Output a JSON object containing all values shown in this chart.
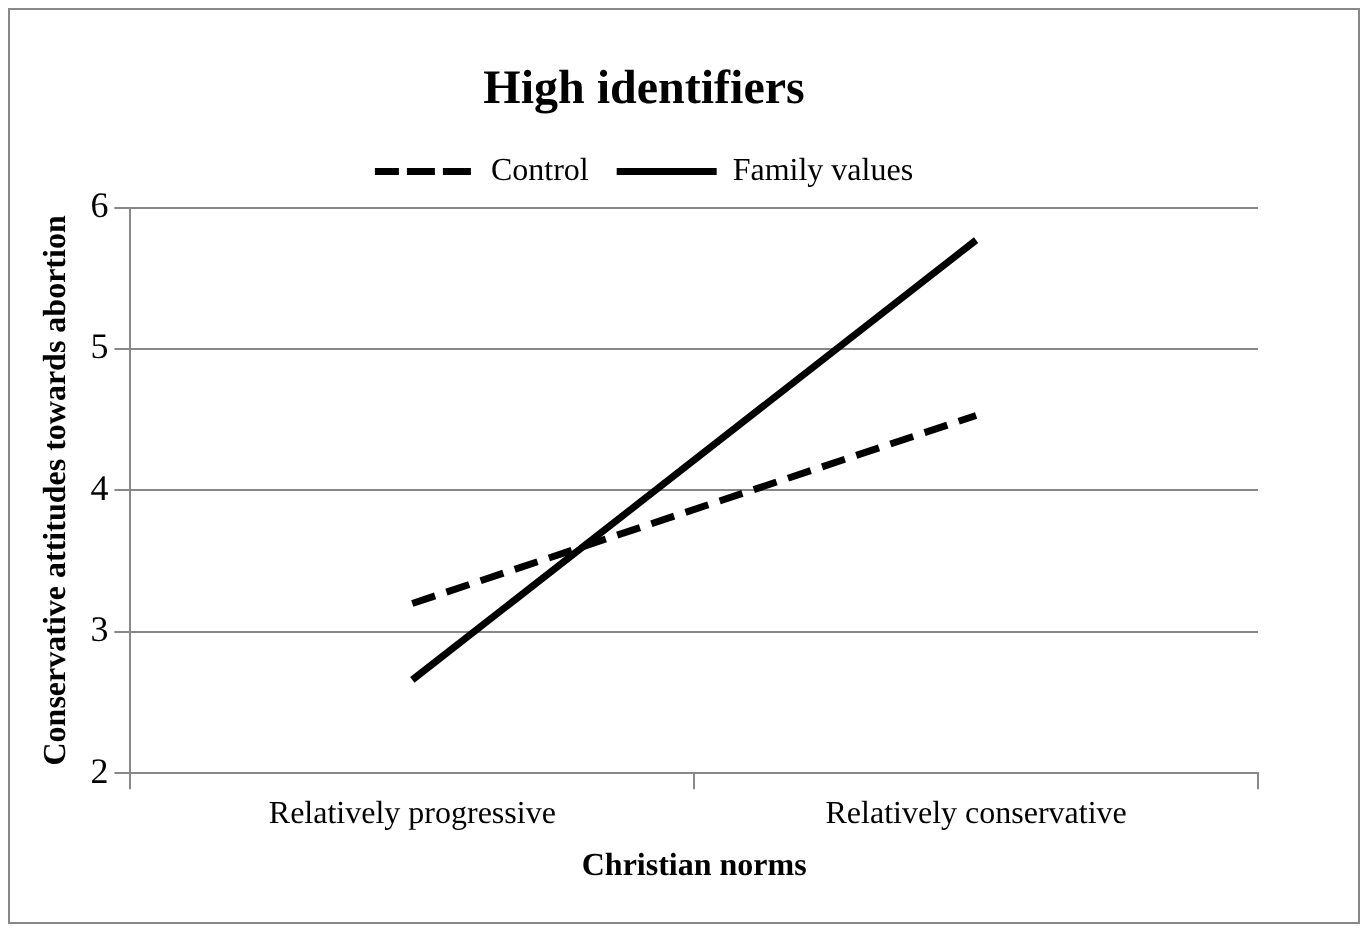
{
  "chart_data": {
    "type": "line",
    "title": "High identifiers",
    "xlabel": "Christian norms",
    "ylabel": "Conservative attitudes towards abortion",
    "categories": [
      "Relatively progressive",
      "Relatively conservative"
    ],
    "series": [
      {
        "name": "Control",
        "color": "#000000",
        "values": [
          3.2,
          4.53
        ],
        "line_style": "dashed"
      },
      {
        "name": "Family values",
        "color": "#000000",
        "values": [
          2.66,
          5.77
        ],
        "line_style": "solid"
      }
    ],
    "ylim": [
      2,
      6
    ],
    "yticks": [
      2,
      3,
      4,
      5,
      6
    ],
    "grid": "y",
    "legend": "top",
    "marker": "none"
  }
}
